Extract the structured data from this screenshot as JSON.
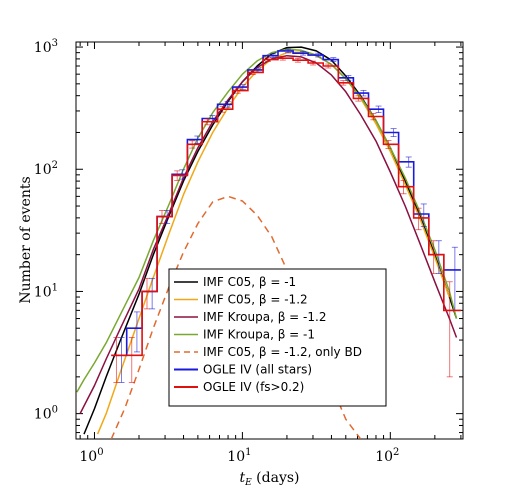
{
  "chart_data": {
    "type": "line",
    "title": "",
    "xlabel": "t_E (days)",
    "xlabel_main": "t",
    "xlabel_sub": "E",
    "xlabel_unit": " (days)",
    "ylabel": "Number of events",
    "xscale": "log",
    "yscale": "log",
    "xlim": [
      0.75,
      310
    ],
    "ylim": [
      0.62,
      1100
    ],
    "grid": false,
    "legend_position": "center-right",
    "x_ticks": [
      {
        "base": "10",
        "exp": "0",
        "value": 1
      },
      {
        "base": "10",
        "exp": "1",
        "value": 10
      },
      {
        "base": "10",
        "exp": "2",
        "value": 100
      }
    ],
    "y_ticks": [
      {
        "base": "10",
        "exp": "0",
        "value": 1
      },
      {
        "base": "10",
        "exp": "1",
        "value": 10
      },
      {
        "base": "10",
        "exp": "2",
        "value": 100
      },
      {
        "base": "10",
        "exp": "3",
        "value": 1000
      }
    ],
    "series": [
      {
        "name": "IMF C05, β = -1",
        "style": "line",
        "color": "#000000",
        "dash": "",
        "x": [
          0.85,
          1.0,
          1.2,
          1.5,
          2.0,
          2.5,
          3.2,
          4.0,
          5.0,
          6.3,
          8,
          10,
          12.6,
          15.8,
          20,
          25,
          31.6,
          40,
          50,
          63,
          80,
          100,
          126,
          158,
          200,
          251,
          280
        ],
        "y": [
          0.68,
          1.1,
          2.0,
          4.0,
          9.5,
          20,
          42,
          80,
          140,
          230,
          360,
          520,
          700,
          880,
          990,
          1000,
          930,
          780,
          580,
          400,
          250,
          150,
          80,
          42,
          20,
          9,
          6
        ]
      },
      {
        "name": "IMF C05, β = -1.2",
        "style": "line",
        "color": "#f0a818",
        "dash": "",
        "x": [
          1.05,
          1.2,
          1.5,
          2.0,
          2.5,
          3.2,
          4.0,
          5.0,
          6.3,
          8,
          10,
          12.6,
          15.8,
          20,
          25,
          31.6,
          40,
          50,
          63,
          80,
          100,
          126,
          158,
          200,
          251
        ],
        "y": [
          0.68,
          1.0,
          2.2,
          6.0,
          13,
          30,
          62,
          115,
          200,
          320,
          470,
          640,
          800,
          900,
          910,
          850,
          720,
          550,
          380,
          235,
          140,
          75,
          40,
          19,
          9
        ]
      },
      {
        "name": "IMF Kroupa, β = -1.2",
        "style": "line",
        "color": "#8b1040",
        "dash": "",
        "x": [
          0.8,
          1.0,
          1.2,
          1.5,
          2.0,
          2.5,
          3.2,
          4.0,
          5.0,
          6.3,
          8,
          10,
          12.6,
          15.8,
          20,
          25,
          31.6,
          40,
          50,
          63,
          80,
          100,
          126,
          158,
          200,
          251,
          280
        ],
        "y": [
          1.0,
          1.7,
          2.8,
          5.0,
          10.5,
          22,
          44,
          85,
          150,
          245,
          370,
          520,
          680,
          800,
          850,
          830,
          740,
          590,
          430,
          280,
          170,
          95,
          50,
          25,
          12,
          6,
          4.2
        ]
      },
      {
        "name": "IMF Kroupa, β = -1",
        "style": "line",
        "color": "#78a830",
        "dash": "",
        "x": [
          0.76,
          0.85,
          1.0,
          1.2,
          1.5,
          2.0,
          2.5,
          3.2,
          4.0,
          5.0,
          6.3,
          8,
          10,
          12.6,
          15.8,
          20,
          25,
          31.6,
          40,
          50,
          63,
          80,
          100,
          126,
          158,
          200,
          251,
          280
        ],
        "y": [
          1.5,
          1.9,
          2.6,
          3.8,
          6.5,
          13,
          26,
          52,
          100,
          180,
          290,
          430,
          600,
          770,
          900,
          960,
          940,
          860,
          720,
          550,
          390,
          250,
          150,
          85,
          45,
          22,
          10,
          6
        ]
      },
      {
        "name": "IMF C05, β = -1.2, only BD",
        "style": "line",
        "color": "#e06a30",
        "dash": "7,5",
        "x": [
          1.3,
          1.6,
          2.0,
          2.5,
          3.2,
          4.0,
          5.0,
          6.3,
          8,
          10,
          12.6,
          15.8,
          20,
          25,
          31.6,
          40,
          50,
          63
        ],
        "y": [
          0.62,
          1.1,
          2.3,
          5.0,
          11,
          21,
          36,
          54,
          60,
          55,
          42,
          28,
          15,
          7.5,
          3.5,
          1.7,
          0.9,
          0.62
        ]
      },
      {
        "name": "OGLE IV (all stars)",
        "style": "step",
        "color": "#1a1adc",
        "dash": "",
        "edges": [
          1.3,
          1.65,
          2.1,
          2.65,
          3.35,
          4.25,
          5.35,
          6.8,
          8.6,
          10.9,
          13.8,
          17.4,
          22,
          27.8,
          35.2,
          44.5,
          56.3,
          71.2,
          90,
          113.8,
          144,
          182,
          230,
          300
        ],
        "values": [
          3.0,
          5.0,
          10,
          41,
          91,
          175,
          260,
          340,
          470,
          650,
          850,
          930,
          890,
          860,
          790,
          560,
          420,
          310,
          200,
          115,
          43,
          20,
          15
        ],
        "err": [
          1.2,
          1.8,
          2.8,
          5,
          8,
          12,
          15,
          18,
          22,
          26,
          30,
          32,
          31,
          30,
          29,
          25,
          22,
          19,
          15,
          11,
          9,
          6,
          8
        ]
      },
      {
        "name": "OGLE IV (fs>0.2)",
        "style": "step",
        "color": "#e01010",
        "dash": "",
        "edges": [
          1.3,
          1.65,
          2.1,
          2.65,
          3.35,
          4.25,
          5.35,
          6.8,
          8.6,
          10.9,
          13.8,
          17.4,
          22,
          27.8,
          35.2,
          44.5,
          56.3,
          71.2,
          90,
          113.8,
          144,
          182,
          230,
          300
        ],
        "values": [
          3.0,
          3.0,
          10,
          41,
          89,
          160,
          245,
          310,
          440,
          620,
          790,
          810,
          780,
          740,
          700,
          510,
          380,
          270,
          160,
          72,
          40,
          20,
          7
        ],
        "err": [
          1.2,
          1.2,
          2.8,
          5,
          8,
          11,
          14,
          17,
          21,
          25,
          28,
          28,
          28,
          27,
          26,
          22,
          19,
          16,
          12,
          9,
          8,
          6,
          5
        ]
      }
    ]
  }
}
